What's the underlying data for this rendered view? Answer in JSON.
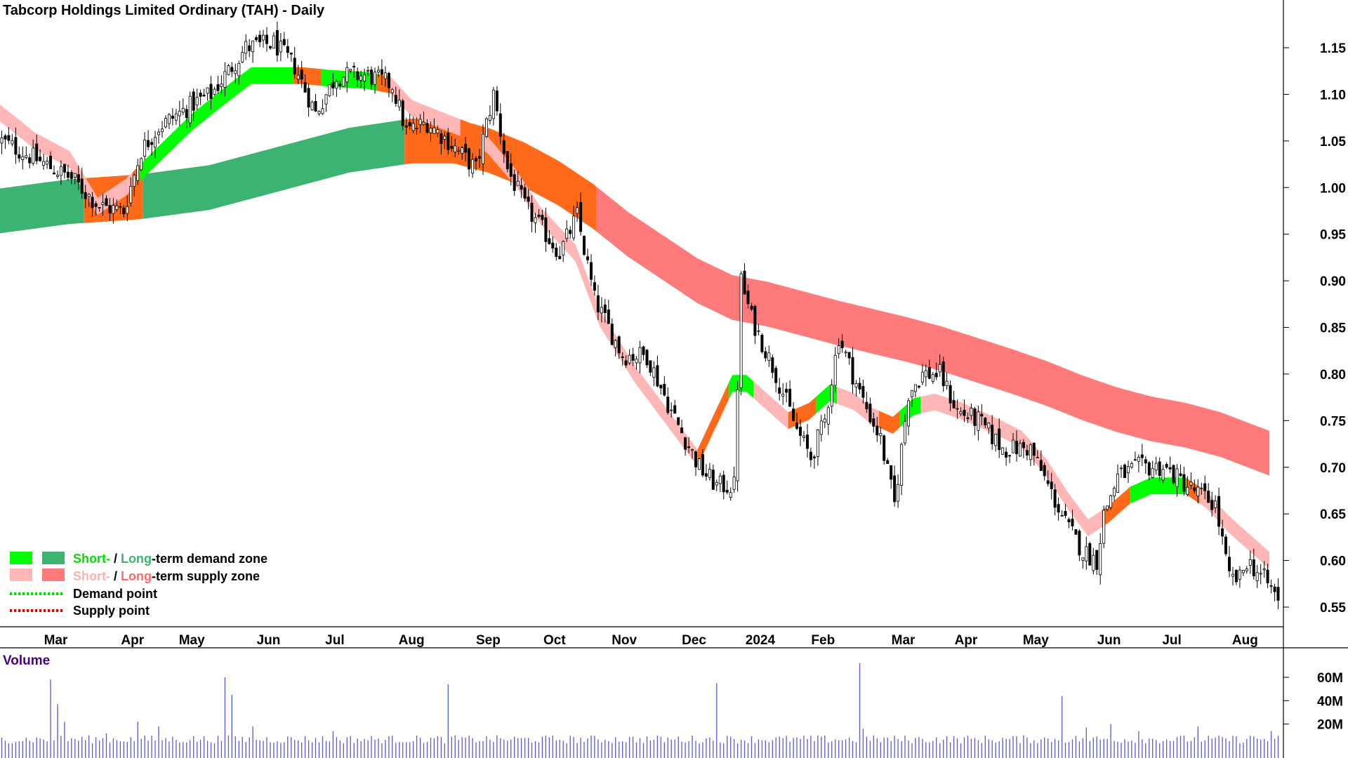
{
  "title": "Tabcorp Holdings Limited Ordinary (TAH) - Daily",
  "colors": {
    "short_demand": "#00ff00",
    "long_demand": "#3cb371",
    "short_supply": "#ffb6b6",
    "long_supply": "#ff7b7b",
    "transition": "#ff6a1a",
    "demand_point": "#00dd00",
    "supply_point": "#dd0000",
    "volume_bar": "#5a5ad8",
    "volume_label": "#4b0082"
  },
  "legend": [
    {
      "icon": "demand-zone-swatches",
      "short": "Short-",
      "sep": " / ",
      "long": "Long",
      "rest": "-term demand zone"
    },
    {
      "icon": "supply-zone-swatches",
      "short": "Short-",
      "sep": " / ",
      "long": "Long",
      "rest": "-term supply zone"
    },
    {
      "icon": "demand-point-line",
      "label": "Demand point"
    },
    {
      "icon": "supply-point-line",
      "label": "Supply point"
    }
  ],
  "chart_data": {
    "type": "line",
    "subtype": "candlestick-with-zone-bands",
    "x_axis": {
      "labels": [
        "Mar",
        "Apr",
        "May",
        "Jun",
        "Jul",
        "Aug",
        "Sep",
        "Oct",
        "Nov",
        "Dec",
        "2024",
        "Feb",
        "Mar",
        "Apr",
        "May",
        "Jun",
        "Jul",
        "Aug"
      ],
      "label_day_index": [
        16,
        38,
        55,
        77,
        96,
        118,
        140,
        159,
        179,
        199,
        218,
        236,
        259,
        277,
        297,
        318,
        336,
        357
      ]
    },
    "y_axis": {
      "ticks": [
        "1.15",
        "1.10",
        "1.05",
        "1.00",
        "0.95",
        "0.90",
        "0.85",
        "0.80",
        "0.75",
        "0.70",
        "0.65",
        "0.60",
        "0.55"
      ],
      "range": [
        0.52,
        1.17
      ],
      "side": "right"
    },
    "price_close_keypoints": [
      [
        0,
        1.05
      ],
      [
        10,
        1.03
      ],
      [
        20,
        1.01
      ],
      [
        28,
        0.98
      ],
      [
        35,
        0.975
      ],
      [
        40,
        1.04
      ],
      [
        45,
        1.065
      ],
      [
        55,
        1.09
      ],
      [
        60,
        1.1
      ],
      [
        70,
        1.15
      ],
      [
        78,
        1.155
      ],
      [
        84,
        1.13
      ],
      [
        90,
        1.08
      ],
      [
        96,
        1.12
      ],
      [
        105,
        1.12
      ],
      [
        112,
        1.11
      ],
      [
        116,
        1.06
      ],
      [
        122,
        1.07
      ],
      [
        128,
        1.05
      ],
      [
        136,
        1.02
      ],
      [
        141,
        1.1
      ],
      [
        145,
        1.02
      ],
      [
        150,
        0.98
      ],
      [
        160,
        0.93
      ],
      [
        165,
        0.97
      ],
      [
        170,
        0.88
      ],
      [
        178,
        0.82
      ],
      [
        185,
        0.82
      ],
      [
        192,
        0.76
      ],
      [
        200,
        0.7
      ],
      [
        205,
        0.68
      ],
      [
        210,
        0.68
      ],
      [
        212,
        0.9
      ],
      [
        215,
        0.86
      ],
      [
        222,
        0.8
      ],
      [
        228,
        0.74
      ],
      [
        232,
        0.71
      ],
      [
        236,
        0.75
      ],
      [
        240,
        0.84
      ],
      [
        246,
        0.78
      ],
      [
        252,
        0.73
      ],
      [
        256,
        0.66
      ],
      [
        260,
        0.78
      ],
      [
        264,
        0.8
      ],
      [
        269,
        0.8
      ],
      [
        274,
        0.76
      ],
      [
        280,
        0.75
      ],
      [
        287,
        0.72
      ],
      [
        295,
        0.72
      ],
      [
        300,
        0.68
      ],
      [
        305,
        0.64
      ],
      [
        310,
        0.61
      ],
      [
        314,
        0.6
      ],
      [
        316,
        0.65
      ],
      [
        320,
        0.69
      ],
      [
        326,
        0.7
      ],
      [
        333,
        0.7
      ],
      [
        340,
        0.68
      ],
      [
        348,
        0.66
      ],
      [
        352,
        0.58
      ],
      [
        355,
        0.58
      ],
      [
        357,
        0.6
      ],
      [
        362,
        0.58
      ],
      [
        366,
        0.56
      ]
    ],
    "short_term_zone_mid": [
      [
        0,
        1.08
      ],
      [
        10,
        1.05
      ],
      [
        20,
        1.03
      ],
      [
        28,
        0.98
      ],
      [
        36,
        1.0
      ],
      [
        44,
        1.03
      ],
      [
        55,
        1.07
      ],
      [
        65,
        1.1
      ],
      [
        72,
        1.12
      ],
      [
        80,
        1.12
      ],
      [
        87,
        1.12
      ],
      [
        95,
        1.117
      ],
      [
        105,
        1.115
      ],
      [
        112,
        1.11
      ],
      [
        118,
        1.085
      ],
      [
        128,
        1.07
      ],
      [
        135,
        1.06
      ],
      [
        140,
        1.045
      ],
      [
        148,
        1.01
      ],
      [
        155,
        0.97
      ],
      [
        165,
        0.93
      ],
      [
        172,
        0.86
      ],
      [
        182,
        0.8
      ],
      [
        192,
        0.75
      ],
      [
        200,
        0.71
      ],
      [
        205,
        0.75
      ],
      [
        210,
        0.79
      ],
      [
        214,
        0.79
      ],
      [
        220,
        0.77
      ],
      [
        226,
        0.75
      ],
      [
        232,
        0.76
      ],
      [
        238,
        0.78
      ],
      [
        245,
        0.77
      ],
      [
        250,
        0.755
      ],
      [
        256,
        0.745
      ],
      [
        262,
        0.765
      ],
      [
        268,
        0.77
      ],
      [
        276,
        0.76
      ],
      [
        285,
        0.745
      ],
      [
        293,
        0.73
      ],
      [
        300,
        0.7
      ],
      [
        306,
        0.665
      ],
      [
        312,
        0.635
      ],
      [
        318,
        0.65
      ],
      [
        324,
        0.67
      ],
      [
        330,
        0.68
      ],
      [
        340,
        0.68
      ],
      [
        346,
        0.665
      ],
      [
        352,
        0.64
      ],
      [
        358,
        0.62
      ],
      [
        364,
        0.6
      ]
    ],
    "short_term_zone_width": 0.018,
    "long_term_zone_mid": [
      [
        0,
        0.975
      ],
      [
        20,
        0.985
      ],
      [
        40,
        0.99
      ],
      [
        60,
        1.0
      ],
      [
        80,
        1.02
      ],
      [
        100,
        1.04
      ],
      [
        118,
        1.05
      ],
      [
        130,
        1.05
      ],
      [
        140,
        1.04
      ],
      [
        150,
        1.025
      ],
      [
        160,
        1.005
      ],
      [
        170,
        0.98
      ],
      [
        180,
        0.95
      ],
      [
        190,
        0.925
      ],
      [
        200,
        0.9
      ],
      [
        210,
        0.882
      ],
      [
        220,
        0.875
      ],
      [
        230,
        0.865
      ],
      [
        240,
        0.855
      ],
      [
        250,
        0.846
      ],
      [
        260,
        0.837
      ],
      [
        270,
        0.827
      ],
      [
        280,
        0.815
      ],
      [
        290,
        0.803
      ],
      [
        300,
        0.79
      ],
      [
        310,
        0.775
      ],
      [
        320,
        0.762
      ],
      [
        330,
        0.752
      ],
      [
        340,
        0.745
      ],
      [
        350,
        0.735
      ],
      [
        357,
        0.725
      ],
      [
        364,
        0.715
      ]
    ],
    "long_term_zone_width": 0.048,
    "volume": {
      "label": "Volume",
      "ticks": [
        "60M",
        "40M",
        "20M"
      ],
      "range": [
        0,
        75
      ],
      "baseline": 7,
      "spikes": [
        [
          14,
          58
        ],
        [
          16,
          37
        ],
        [
          18,
          22
        ],
        [
          30,
          12
        ],
        [
          39,
          22
        ],
        [
          45,
          18
        ],
        [
          64,
          60
        ],
        [
          66,
          45
        ],
        [
          72,
          18
        ],
        [
          95,
          14
        ],
        [
          128,
          54
        ],
        [
          205,
          55
        ],
        [
          246,
          72
        ],
        [
          247,
          16
        ],
        [
          304,
          44
        ],
        [
          311,
          17
        ],
        [
          318,
          20
        ],
        [
          326,
          14
        ],
        [
          343,
          18
        ],
        [
          358,
          10
        ],
        [
          364,
          14
        ]
      ]
    },
    "grid": false,
    "legend_position": "bottom-left"
  }
}
